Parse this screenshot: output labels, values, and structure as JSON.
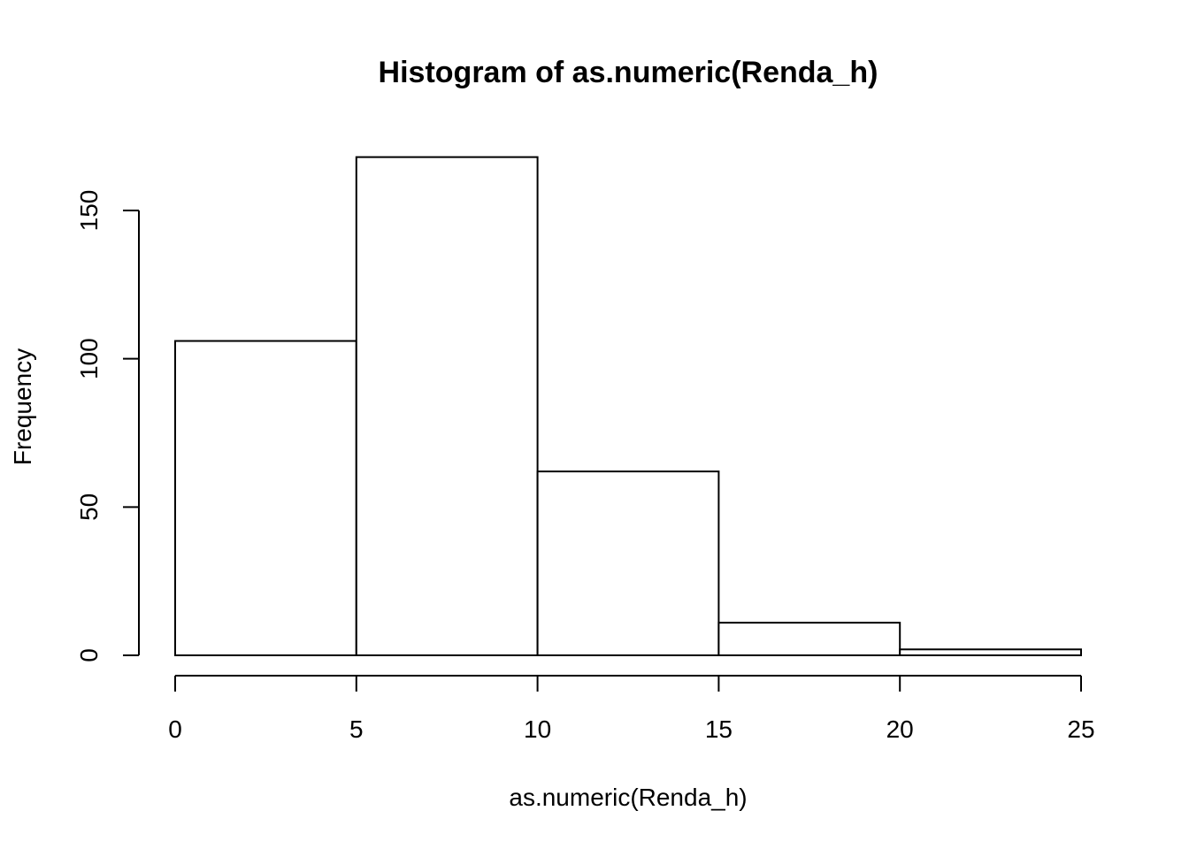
{
  "chart_data": {
    "type": "bar",
    "title": "Histogram of as.numeric(Renda_h)",
    "xlabel": "as.numeric(Renda_h)",
    "ylabel": "Frequency",
    "bins": [
      {
        "from": 0,
        "to": 5,
        "count": 106
      },
      {
        "from": 5,
        "to": 10,
        "count": 168
      },
      {
        "from": 10,
        "to": 15,
        "count": 62
      },
      {
        "from": 15,
        "to": 20,
        "count": 11
      },
      {
        "from": 20,
        "to": 25,
        "count": 2
      }
    ],
    "xlim": [
      0,
      25
    ],
    "ylim": [
      0,
      168
    ],
    "x_ticks": [
      0,
      5,
      10,
      15,
      20,
      25
    ],
    "y_ticks": [
      0,
      50,
      100,
      150
    ],
    "x_tick_labels": [
      "0",
      "5",
      "10",
      "15",
      "20",
      "25"
    ],
    "y_tick_labels": [
      "0",
      "50",
      "100",
      "150"
    ],
    "grid": false,
    "legend": "none",
    "bar_fill": "#ffffff",
    "bar_stroke": "#000000"
  }
}
